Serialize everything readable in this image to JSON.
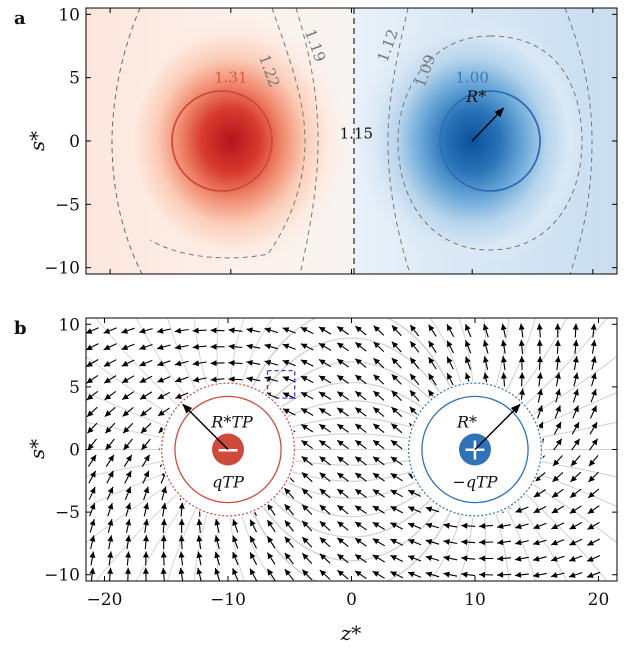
{
  "chart_data": [
    {
      "type": "heatmap",
      "panel_label": "a",
      "xlim": [
        -22,
        22
      ],
      "ylim": [
        -10.5,
        10.5
      ],
      "yticks": [
        -10,
        -5,
        0,
        5,
        10
      ],
      "ytick_labels": [
        "−10",
        "−5",
        "0",
        "5",
        "10"
      ],
      "ylabel": "s*",
      "sources": [
        {
          "name": "left",
          "x": -10,
          "y": 0,
          "color": "#d03c2e",
          "radius": 4.2
        },
        {
          "name": "right",
          "x": 10,
          "y": 0,
          "color": "#2e6db5",
          "radius": 4.2
        }
      ],
      "contour_labels": [
        {
          "text": "1.31",
          "x": -10,
          "y": 4.6,
          "color": "#d9574a"
        },
        {
          "text": "1.22",
          "x": -7.2,
          "y": 5.4,
          "color": "#777777"
        },
        {
          "text": "1.19",
          "x": -3.4,
          "y": 7.4,
          "color": "#777777"
        },
        {
          "text": "1.15",
          "x": 0.4,
          "y": 0.2,
          "color": "#111111"
        },
        {
          "text": "1.12",
          "x": 3.4,
          "y": 7.4,
          "color": "#777777"
        },
        {
          "text": "1.09",
          "x": 6.5,
          "y": 5.4,
          "color": "#777777"
        },
        {
          "text": "1.00",
          "x": 10,
          "y": 4.6,
          "color": "#3a78c0"
        }
      ],
      "radius_annotation": {
        "text": "R*",
        "from": [
          10,
          0
        ],
        "to": [
          12.6,
          2.6
        ]
      }
    },
    {
      "type": "vector_field",
      "panel_label": "b",
      "xlim": [
        -21.5,
        21.5
      ],
      "ylim": [
        -10.5,
        10.5
      ],
      "xticks": [
        -20,
        -10,
        0,
        10,
        20
      ],
      "xtick_labels": [
        "−20",
        "−10",
        "0",
        "10",
        "20"
      ],
      "yticks": [
        -10,
        -5,
        0,
        5,
        10
      ],
      "ytick_labels": [
        "−10",
        "−5",
        "0",
        "5",
        "10"
      ],
      "xlabel": "z*",
      "ylabel": "s*",
      "charges": [
        {
          "name": "left",
          "x": -10,
          "y": 0,
          "sign": -1,
          "color": "#cf4a3a",
          "symbol": "−",
          "label": "qTP",
          "radius_label": "R*TP"
        },
        {
          "name": "right",
          "x": 10,
          "y": 0,
          "sign": 1,
          "color": "#2f72b8",
          "symbol": "+",
          "label": "−qTP",
          "radius_label": "R*"
        }
      ],
      "inset_box": {
        "x0": -6.8,
        "x1": -4.6,
        "y0": 4.1,
        "y1": 6.3,
        "color": "#3344dd"
      }
    }
  ]
}
